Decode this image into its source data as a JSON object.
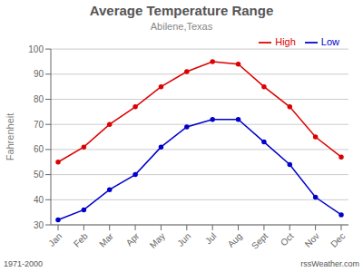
{
  "chart_data": {
    "type": "line",
    "title": "Average Temperature Range",
    "subtitle": "Abilene,Texas",
    "y_label": "Fahrenheit",
    "categories": [
      "Jan",
      "Feb",
      "Mar",
      "Apr",
      "May",
      "Jun",
      "Jul",
      "Aug",
      "Sept",
      "Oct",
      "Nov",
      "Dec"
    ],
    "series": [
      {
        "name": "High",
        "color": "#dd0000",
        "marker": "circle",
        "values": [
          55,
          61,
          70,
          77,
          85,
          91,
          95,
          94,
          85,
          77,
          65,
          57
        ]
      },
      {
        "name": "Low",
        "color": "#0000cc",
        "marker": "circle",
        "values": [
          32,
          36,
          44,
          50,
          61,
          69,
          72,
          72,
          63,
          54,
          41,
          34
        ]
      }
    ],
    "ylim": [
      30,
      100
    ],
    "yticks": [
      30,
      40,
      50,
      60,
      70,
      80,
      90,
      100
    ],
    "grid": true,
    "legend": "upper right",
    "annotations": [
      "1971-2000",
      "rssWeather.com"
    ]
  }
}
